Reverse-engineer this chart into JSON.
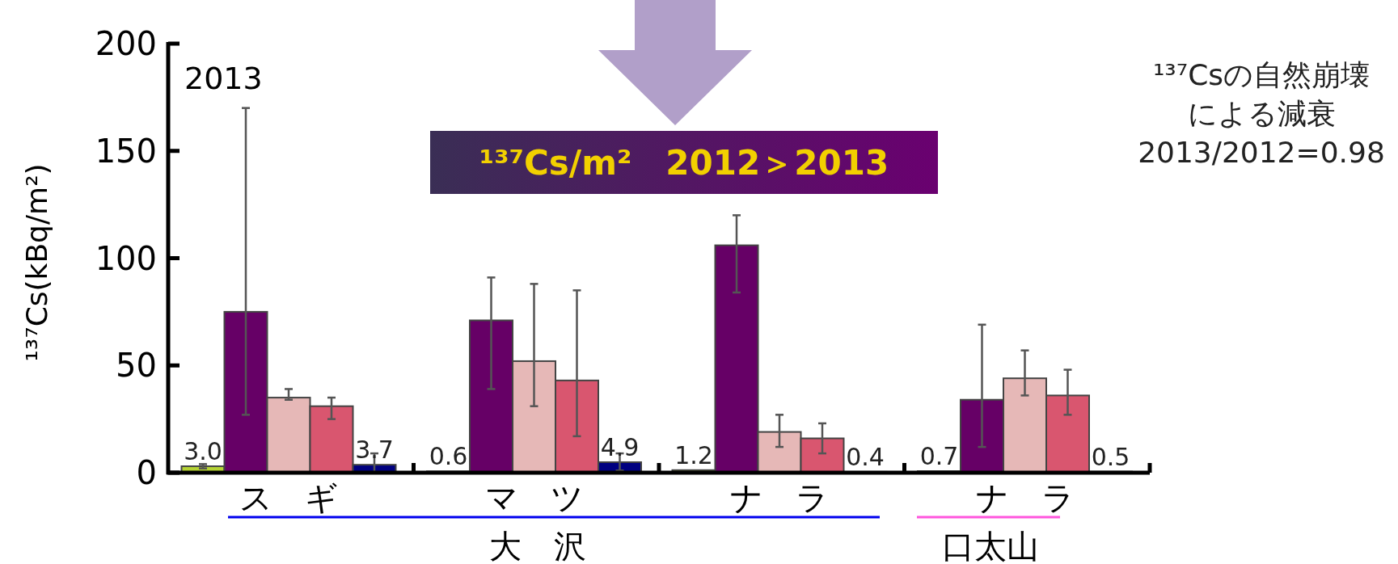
{
  "chart_data": {
    "type": "bar",
    "categories": [
      "スギ",
      "マツ",
      "ナラ",
      "ナラ"
    ],
    "ylabel": "¹³⁷Cs(kBq/m²)",
    "ylim": [
      0,
      200
    ],
    "yticks": [
      0,
      50,
      100,
      150,
      200
    ],
    "series": [
      {
        "color": "#b5d334",
        "values": [
          3.0,
          0.6,
          1.2,
          0.7
        ],
        "value_labels": [
          "3.0",
          "0.6",
          "1.2",
          "0.7"
        ],
        "errors": [
          [
            2,
            4
          ],
          null,
          null,
          null
        ]
      },
      {
        "color": "#660066",
        "values": [
          75,
          71,
          106,
          34
        ],
        "errors": [
          [
            27,
            170
          ],
          [
            39,
            91
          ],
          [
            84,
            120
          ],
          [
            12,
            69
          ]
        ]
      },
      {
        "color": "#e6b8b7",
        "values": [
          35,
          52,
          19,
          44
        ],
        "errors": [
          [
            34,
            39
          ],
          [
            31,
            88
          ],
          [
            12,
            27
          ],
          [
            36,
            57
          ]
        ]
      },
      {
        "color": "#d9566f",
        "values": [
          31,
          43,
          16,
          36
        ],
        "errors": [
          [
            25,
            35
          ],
          [
            17,
            85
          ],
          [
            9,
            23
          ],
          [
            27,
            48
          ]
        ]
      },
      {
        "color": "#000080",
        "values": [
          3.7,
          4.9,
          0.4,
          0.5
        ],
        "value_labels": [
          "3.7",
          "4.9",
          "0.4",
          "0.5"
        ],
        "errors": [
          [
            0,
            9
          ],
          [
            1,
            9
          ],
          null,
          null
        ]
      }
    ],
    "annotations": [
      "2013",
      "¹³⁷Cs/m²　2012＞2013",
      "¹³⁷Csの自然崩壊",
      "による減衰",
      "2013/2012=0.98",
      "大　沢",
      "口太山"
    ]
  }
}
